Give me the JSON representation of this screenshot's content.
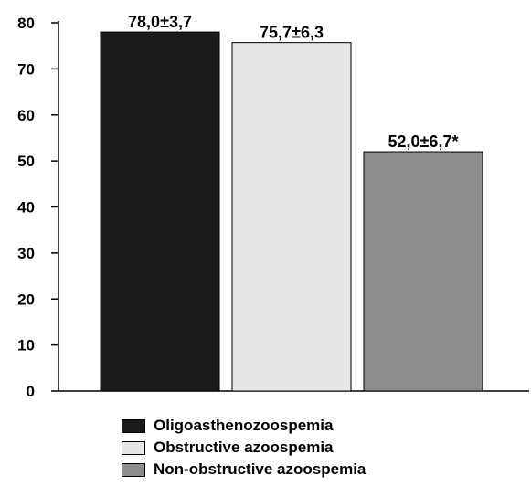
{
  "chart_data": {
    "type": "bar",
    "categories": [
      "Oligoasthenozoospemia",
      "Obstructive azoospemia",
      "Non-obstructive azoospemia"
    ],
    "values": [
      78.0,
      75.7,
      52.0
    ],
    "data_labels": [
      "78,0±3,7",
      "75,7±6,3",
      "52,0±6,7*"
    ],
    "colors": [
      "#1a1a1a",
      "#e6e6e6",
      "#8c8c8c"
    ],
    "ylim": [
      0,
      80
    ],
    "yticks": [
      0,
      10,
      20,
      30,
      40,
      50,
      60,
      70,
      80
    ],
    "grid": false,
    "legend_position": "bottom"
  },
  "legend": {
    "items": [
      {
        "label": "Oligoasthenozoospemia",
        "color": "#1a1a1a"
      },
      {
        "label": "Obstructive azoospemia",
        "color": "#e6e6e6"
      },
      {
        "label": "Non-obstructive azoospemia",
        "color": "#8c8c8c"
      }
    ]
  }
}
